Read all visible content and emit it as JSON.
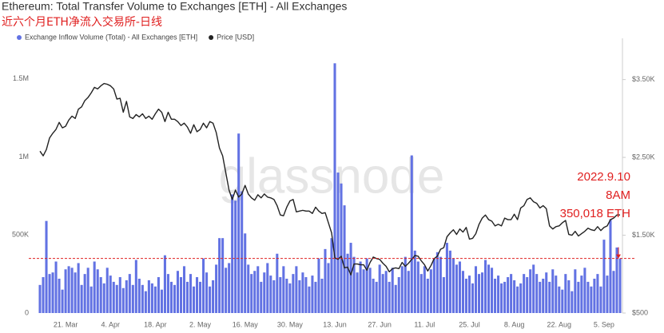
{
  "chart_data": {
    "type": "bar",
    "title": "Ethereum: Total Transfer Volume to Exchanges [ETH] - All Exchanges",
    "subtitle": "近六个月ETH净流入交易所-日线",
    "watermark": "glassnode",
    "annotation": [
      "2022.9.10",
      "8AM",
      "350,018 ETH"
    ],
    "categories": [
      null,
      null,
      null,
      null,
      null,
      null,
      null,
      null,
      "21. Mar",
      null,
      null,
      null,
      null,
      null,
      null,
      null,
      null,
      null,
      null,
      null,
      null,
      null,
      "4. Apr",
      null,
      null,
      null,
      null,
      null,
      null,
      null,
      null,
      null,
      null,
      null,
      null,
      null,
      "18. Apr",
      null,
      null,
      null,
      null,
      null,
      null,
      null,
      null,
      null,
      null,
      null,
      null,
      null,
      "2. May",
      null,
      null,
      null,
      null,
      null,
      null,
      null,
      null,
      null,
      null,
      null,
      null,
      null,
      "16. May",
      null,
      null,
      null,
      null,
      null,
      null,
      null,
      null,
      null,
      null,
      null,
      null,
      null,
      "30. May",
      null,
      null,
      null,
      null,
      null,
      null,
      null,
      null,
      null,
      null,
      null,
      null,
      null,
      "13. Jun",
      null,
      null,
      null,
      null,
      null,
      null,
      null,
      null,
      null,
      null,
      null,
      null,
      null,
      "27. Jun",
      null,
      null,
      null,
      null,
      null,
      null,
      null,
      null,
      null,
      null,
      null,
      null,
      null,
      "11. Jul",
      null,
      null,
      null,
      null,
      null,
      null,
      null,
      null,
      null,
      null,
      null,
      null,
      null,
      "25. Jul",
      null,
      null,
      null,
      null,
      null,
      null,
      null,
      null,
      null,
      null,
      null,
      null,
      null,
      "8. Aug",
      null,
      null,
      null,
      null,
      null,
      null,
      null,
      null,
      null,
      null,
      null,
      null,
      null,
      "22. Aug",
      null,
      null,
      null,
      null,
      null,
      null,
      null,
      null,
      null,
      null,
      null,
      null,
      null,
      "5. Sep",
      null,
      null,
      null,
      null,
      null
    ],
    "series": [
      {
        "name": "Exchange Inflow Volume (Total) - All Exchanges [ETH]",
        "color": "#6272e3",
        "values": [
          180000,
          230000,
          590000,
          250000,
          260000,
          330000,
          220000,
          150000,
          280000,
          300000,
          290000,
          260000,
          320000,
          180000,
          250000,
          290000,
          170000,
          330000,
          280000,
          230000,
          190000,
          290000,
          240000,
          200000,
          180000,
          230000,
          160000,
          210000,
          250000,
          180000,
          340000,
          220000,
          180000,
          140000,
          210000,
          190000,
          170000,
          230000,
          150000,
          370000,
          250000,
          200000,
          180000,
          270000,
          230000,
          300000,
          200000,
          250000,
          170000,
          230000,
          200000,
          350000,
          260000,
          170000,
          210000,
          310000,
          480000,
          480000,
          290000,
          320000,
          760000,
          720000,
          1150000,
          780000,
          510000,
          310000,
          250000,
          270000,
          300000,
          200000,
          260000,
          320000,
          240000,
          210000,
          380000,
          230000,
          300000,
          220000,
          190000,
          250000,
          300000,
          210000,
          260000,
          230000,
          170000,
          240000,
          200000,
          350000,
          220000,
          410000,
          320000,
          480000,
          1600000,
          900000,
          830000,
          690000,
          380000,
          450000,
          360000,
          260000,
          330000,
          280000,
          350000,
          290000,
          220000,
          200000,
          310000,
          250000,
          270000,
          200000,
          290000,
          180000,
          230000,
          300000,
          360000,
          270000,
          1010000,
          400000,
          330000,
          250000,
          300000,
          220000,
          280000,
          350000,
          390000,
          360000,
          230000,
          450000,
          400000,
          350000,
          310000,
          330000,
          270000,
          220000,
          240000,
          190000,
          300000,
          250000,
          260000,
          340000,
          310000,
          290000,
          220000,
          240000,
          190000,
          200000,
          230000,
          250000,
          210000,
          170000,
          190000,
          250000,
          230000,
          280000,
          310000,
          250000,
          200000,
          220000,
          260000,
          200000,
          280000,
          240000,
          170000,
          150000,
          250000,
          210000,
          140000,
          280000,
          200000,
          240000,
          290000,
          200000,
          170000,
          220000,
          250000,
          170000,
          470000,
          240000,
          600000,
          270000,
          420000,
          350018
        ]
      },
      {
        "name": "Price [USD]",
        "color": "#222222",
        "type": "line",
        "axis": "y2",
        "values": [
          2580,
          2520,
          2600,
          2750,
          2810,
          2860,
          2950,
          2880,
          2900,
          2980,
          3030,
          3000,
          3120,
          3150,
          3230,
          3270,
          3330,
          3400,
          3380,
          3420,
          3450,
          3440,
          3420,
          3380,
          3250,
          3260,
          3080,
          3220,
          3020,
          3000,
          3050,
          3020,
          3060,
          3000,
          3030,
          2990,
          3060,
          3120,
          3080,
          2960,
          3080,
          2990,
          2990,
          2960,
          2910,
          2940,
          2890,
          2810,
          2920,
          2830,
          2860,
          2940,
          2880,
          2960,
          2940,
          2820,
          2620,
          2520,
          2300,
          2080,
          1960,
          2080,
          1990,
          2030,
          2140,
          2030,
          1980,
          1950,
          2020,
          1980,
          2030,
          1990,
          1980,
          1960,
          1880,
          1760,
          1750,
          1860,
          1940,
          1960,
          1800,
          1810,
          1820,
          1810,
          1810,
          1780,
          1860,
          1810,
          1780,
          1790,
          1660,
          1530,
          1210,
          1190,
          1230,
          1080,
          1090,
          990,
          1130,
          1130,
          1120,
          1120,
          1050,
          1150,
          1220,
          1200,
          1190,
          1140,
          1100,
          1030,
          1070,
          1080,
          1070,
          1150,
          1100,
          1140,
          1190,
          1240,
          1230,
          1170,
          1120,
          1040,
          1110,
          1200,
          1230,
          1320,
          1340,
          1480,
          1530,
          1570,
          1510,
          1580,
          1540,
          1600,
          1450,
          1460,
          1520,
          1640,
          1720,
          1760,
          1700,
          1680,
          1620,
          1640,
          1620,
          1720,
          1700,
          1700,
          1770,
          1700,
          1850,
          1880,
          1960,
          1980,
          1930,
          1910,
          1850,
          1880,
          1840,
          1620,
          1580,
          1610,
          1620,
          1660,
          1690,
          1510,
          1500,
          1550,
          1490,
          1520,
          1550,
          1590,
          1570,
          1560,
          1610,
          1560,
          1600,
          1620,
          1700,
          1720,
          1760,
          1760
        ]
      }
    ],
    "ylim": [
      0,
      1760000
    ],
    "yticks": [
      0,
      {
        "value": 500000,
        "label": "500K"
      },
      {
        "value": 1000000,
        "label": "1M"
      },
      {
        "value": 1500000,
        "label": "1.5M"
      }
    ],
    "y2lim": [
      500,
      4030
    ],
    "y2ticks": [
      {
        "value": 500,
        "label": "$500"
      },
      {
        "value": 1500,
        "label": "$1.50K"
      },
      {
        "value": 2500,
        "label": "$2.50K"
      },
      {
        "value": 3500,
        "label": "$3.50K"
      }
    ]
  }
}
